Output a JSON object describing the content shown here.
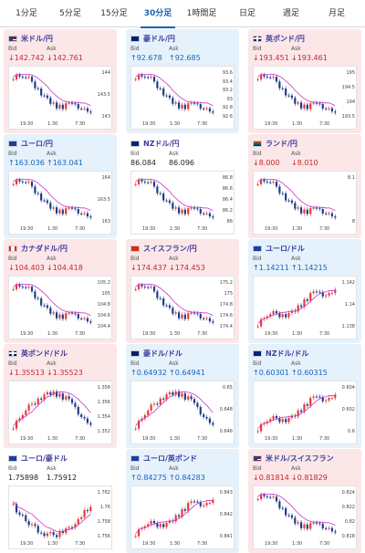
{
  "tabs": [
    {
      "label": "1分足",
      "active": false
    },
    {
      "label": "5分足",
      "active": false
    },
    {
      "label": "15分足",
      "active": false
    },
    {
      "label": "30分足",
      "active": true
    },
    {
      "label": "1時間足",
      "active": false
    },
    {
      "label": "日足",
      "active": false
    },
    {
      "label": "週足",
      "active": false
    },
    {
      "label": "月足",
      "active": false
    }
  ],
  "labels": {
    "bid": "Bid",
    "ask": "Ask"
  },
  "x_ticks": [
    "19:30",
    "1:30",
    "7:30"
  ],
  "colors": {
    "down_bg": "#fbe6e8",
    "up_bg": "#e5f1fb",
    "candle_up": "#e53935",
    "candle_down": "#1e3a8a",
    "ma": "#cc33cc"
  },
  "pairs": [
    {
      "name": "米ドル/円",
      "flag": "us-flag",
      "trend": "down",
      "bid": "↓142.742",
      "ask": "↓142.761",
      "y_ticks": [
        "144",
        "143.5",
        "143"
      ],
      "shape": "fall"
    },
    {
      "name": "豪ドル/円",
      "flag": "au-flag",
      "trend": "up",
      "bid": "↑92.678",
      "ask": "↑92.685",
      "y_ticks": [
        "93.6",
        "93.4",
        "93.2",
        "93",
        "92.8",
        "92.6"
      ],
      "shape": "fall"
    },
    {
      "name": "英ポンド/円",
      "flag": "gb-flag",
      "trend": "down",
      "bid": "↓193.451",
      "ask": "↓193.461",
      "y_ticks": [
        "195",
        "194.5",
        "194",
        "193.5"
      ],
      "shape": "fall"
    },
    {
      "name": "ユーロ/円",
      "flag": "eu-flag",
      "trend": "up",
      "bid": "↑163.036",
      "ask": "↑163.041",
      "y_ticks": [
        "164",
        "163.5",
        "163"
      ],
      "shape": "fall"
    },
    {
      "name": "NZドル/円",
      "flag": "nz-flag",
      "trend": "flat",
      "bid": "86.084",
      "ask": "86.096",
      "y_ticks": [
        "86.8",
        "86.6",
        "86.4",
        "86.2",
        "86"
      ],
      "shape": "fall"
    },
    {
      "name": "ランド/円",
      "flag": "za-flag",
      "trend": "down",
      "bid": "↓8.000",
      "ask": "↓8.010",
      "y_ticks": [
        "8.1",
        "8"
      ],
      "shape": "fall"
    },
    {
      "name": "カナダドル/円",
      "flag": "ca-flag",
      "trend": "down",
      "bid": "↓104.403",
      "ask": "↓104.418",
      "y_ticks": [
        "105.2",
        "105",
        "104.8",
        "104.6",
        "104.4"
      ],
      "shape": "fall"
    },
    {
      "name": "スイスフラン/円",
      "flag": "ch-flag",
      "trend": "down",
      "bid": "↓174.437",
      "ask": "↓174.453",
      "y_ticks": [
        "175.2",
        "175",
        "174.8",
        "174.6",
        "174.4"
      ],
      "shape": "fall"
    },
    {
      "name": "ユーロ/ドル",
      "flag": "eu-flag",
      "trend": "up",
      "bid": "↑1.14211",
      "ask": "↑1.14215",
      "y_ticks": [
        "1.142",
        "1.14",
        "1.138"
      ],
      "shape": "rise"
    },
    {
      "name": "英ポンド/ドル",
      "flag": "gb-flag",
      "trend": "down",
      "bid": "↓1.35513",
      "ask": "↓1.35523",
      "y_ticks": [
        "1.358",
        "1.356",
        "1.354",
        "1.352"
      ],
      "shape": "hump"
    },
    {
      "name": "豪ドル/ドル",
      "flag": "au-flag",
      "trend": "up",
      "bid": "↑0.64932",
      "ask": "↑0.64941",
      "y_ticks": [
        "0.65",
        "0.648",
        "0.646"
      ],
      "shape": "hump"
    },
    {
      "name": "NZドル/ドル",
      "flag": "nz-flag",
      "trend": "up",
      "bid": "↑0.60301",
      "ask": "↑0.60315",
      "y_ticks": [
        "0.604",
        "0.602",
        "0.6"
      ],
      "shape": "rise"
    },
    {
      "name": "ユーロ/豪ドル",
      "flag": "eu-flag",
      "trend": "flat",
      "bid": "1.75898",
      "ask": "1.75912",
      "y_ticks": [
        "1.762",
        "1.76",
        "1.758",
        "1.756"
      ],
      "shape": "dip"
    },
    {
      "name": "ユーロ/英ポンド",
      "flag": "eu-flag",
      "trend": "up",
      "bid": "↑0.84275",
      "ask": "↑0.84283",
      "y_ticks": [
        "0.843",
        "0.842",
        "0.841"
      ],
      "shape": "rise"
    },
    {
      "name": "米ドル/スイスフラン",
      "flag": "us-flag",
      "trend": "down",
      "bid": "↓0.81814",
      "ask": "↓0.81829",
      "y_ticks": [
        "0.824",
        "0.822",
        "0.82",
        "0.818"
      ],
      "shape": "fall"
    }
  ]
}
